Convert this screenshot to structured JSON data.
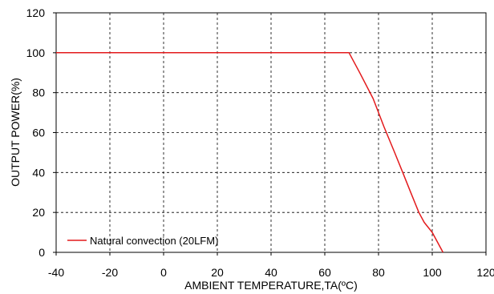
{
  "chart_data": {
    "type": "line",
    "title": "",
    "xlabel": "AMBIENT TEMPERATURE,TA(ºC)",
    "ylabel": "OUTPUT POWER(%)",
    "xlim": [
      -40,
      120
    ],
    "ylim": [
      0,
      120
    ],
    "xticks": [
      -40,
      -20,
      0,
      20,
      40,
      60,
      80,
      100,
      120
    ],
    "yticks": [
      0,
      20,
      40,
      60,
      80,
      100,
      120
    ],
    "x_tick_labels": [
      "-40",
      "-20",
      "0",
      "20",
      "40",
      "60",
      "80",
      "100",
      "120"
    ],
    "y_tick_labels": [
      "0",
      "20",
      "40",
      "60",
      "80",
      "100",
      "120"
    ],
    "grid": true,
    "grid_style": "dashed",
    "legend_position": "bottom-left",
    "series": [
      {
        "name": "Natural convection (20LFM)",
        "color": "#e31a1c",
        "x": [
          -40,
          69,
          73,
          78,
          82,
          86,
          89,
          92,
          95,
          97,
          100,
          104
        ],
        "y": [
          100,
          100,
          90,
          77,
          63,
          50,
          40,
          30,
          20,
          15,
          10,
          0
        ]
      }
    ]
  }
}
